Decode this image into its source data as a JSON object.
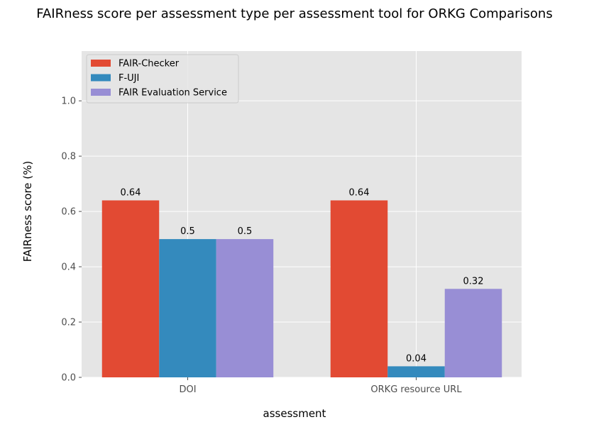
{
  "chart_data": {
    "type": "bar",
    "title": "FAIRness score per assessment type per assessment tool for ORKG Comparisons",
    "xlabel": "assessment",
    "ylabel": "FAIRness score (%)",
    "categories": [
      "DOI",
      "ORKG resource URL"
    ],
    "series": [
      {
        "name": "FAIR-Checker",
        "values": [
          0.64,
          0.64
        ],
        "color": "#E24A33",
        "labels": [
          "0.64",
          "0.64"
        ]
      },
      {
        "name": "F-UJI",
        "values": [
          0.5,
          0.04
        ],
        "color": "#348ABD",
        "labels": [
          "0.5",
          "0.04"
        ]
      },
      {
        "name": "FAIR Evaluation Service",
        "values": [
          0.5,
          0.32
        ],
        "color": "#988ED5",
        "labels": [
          "0.5",
          "0.32"
        ]
      }
    ],
    "ylim": [
      0,
      1.18
    ],
    "yticks": [
      0.0,
      0.2,
      0.4,
      0.6,
      0.8,
      1.0
    ],
    "ytick_labels": [
      "0.0",
      "0.2",
      "0.4",
      "0.6",
      "0.8",
      "1.0"
    ],
    "grid": true,
    "legend_position": "top-left",
    "background_color": "#E5E5E5",
    "grid_color": "#FFFFFF"
  }
}
